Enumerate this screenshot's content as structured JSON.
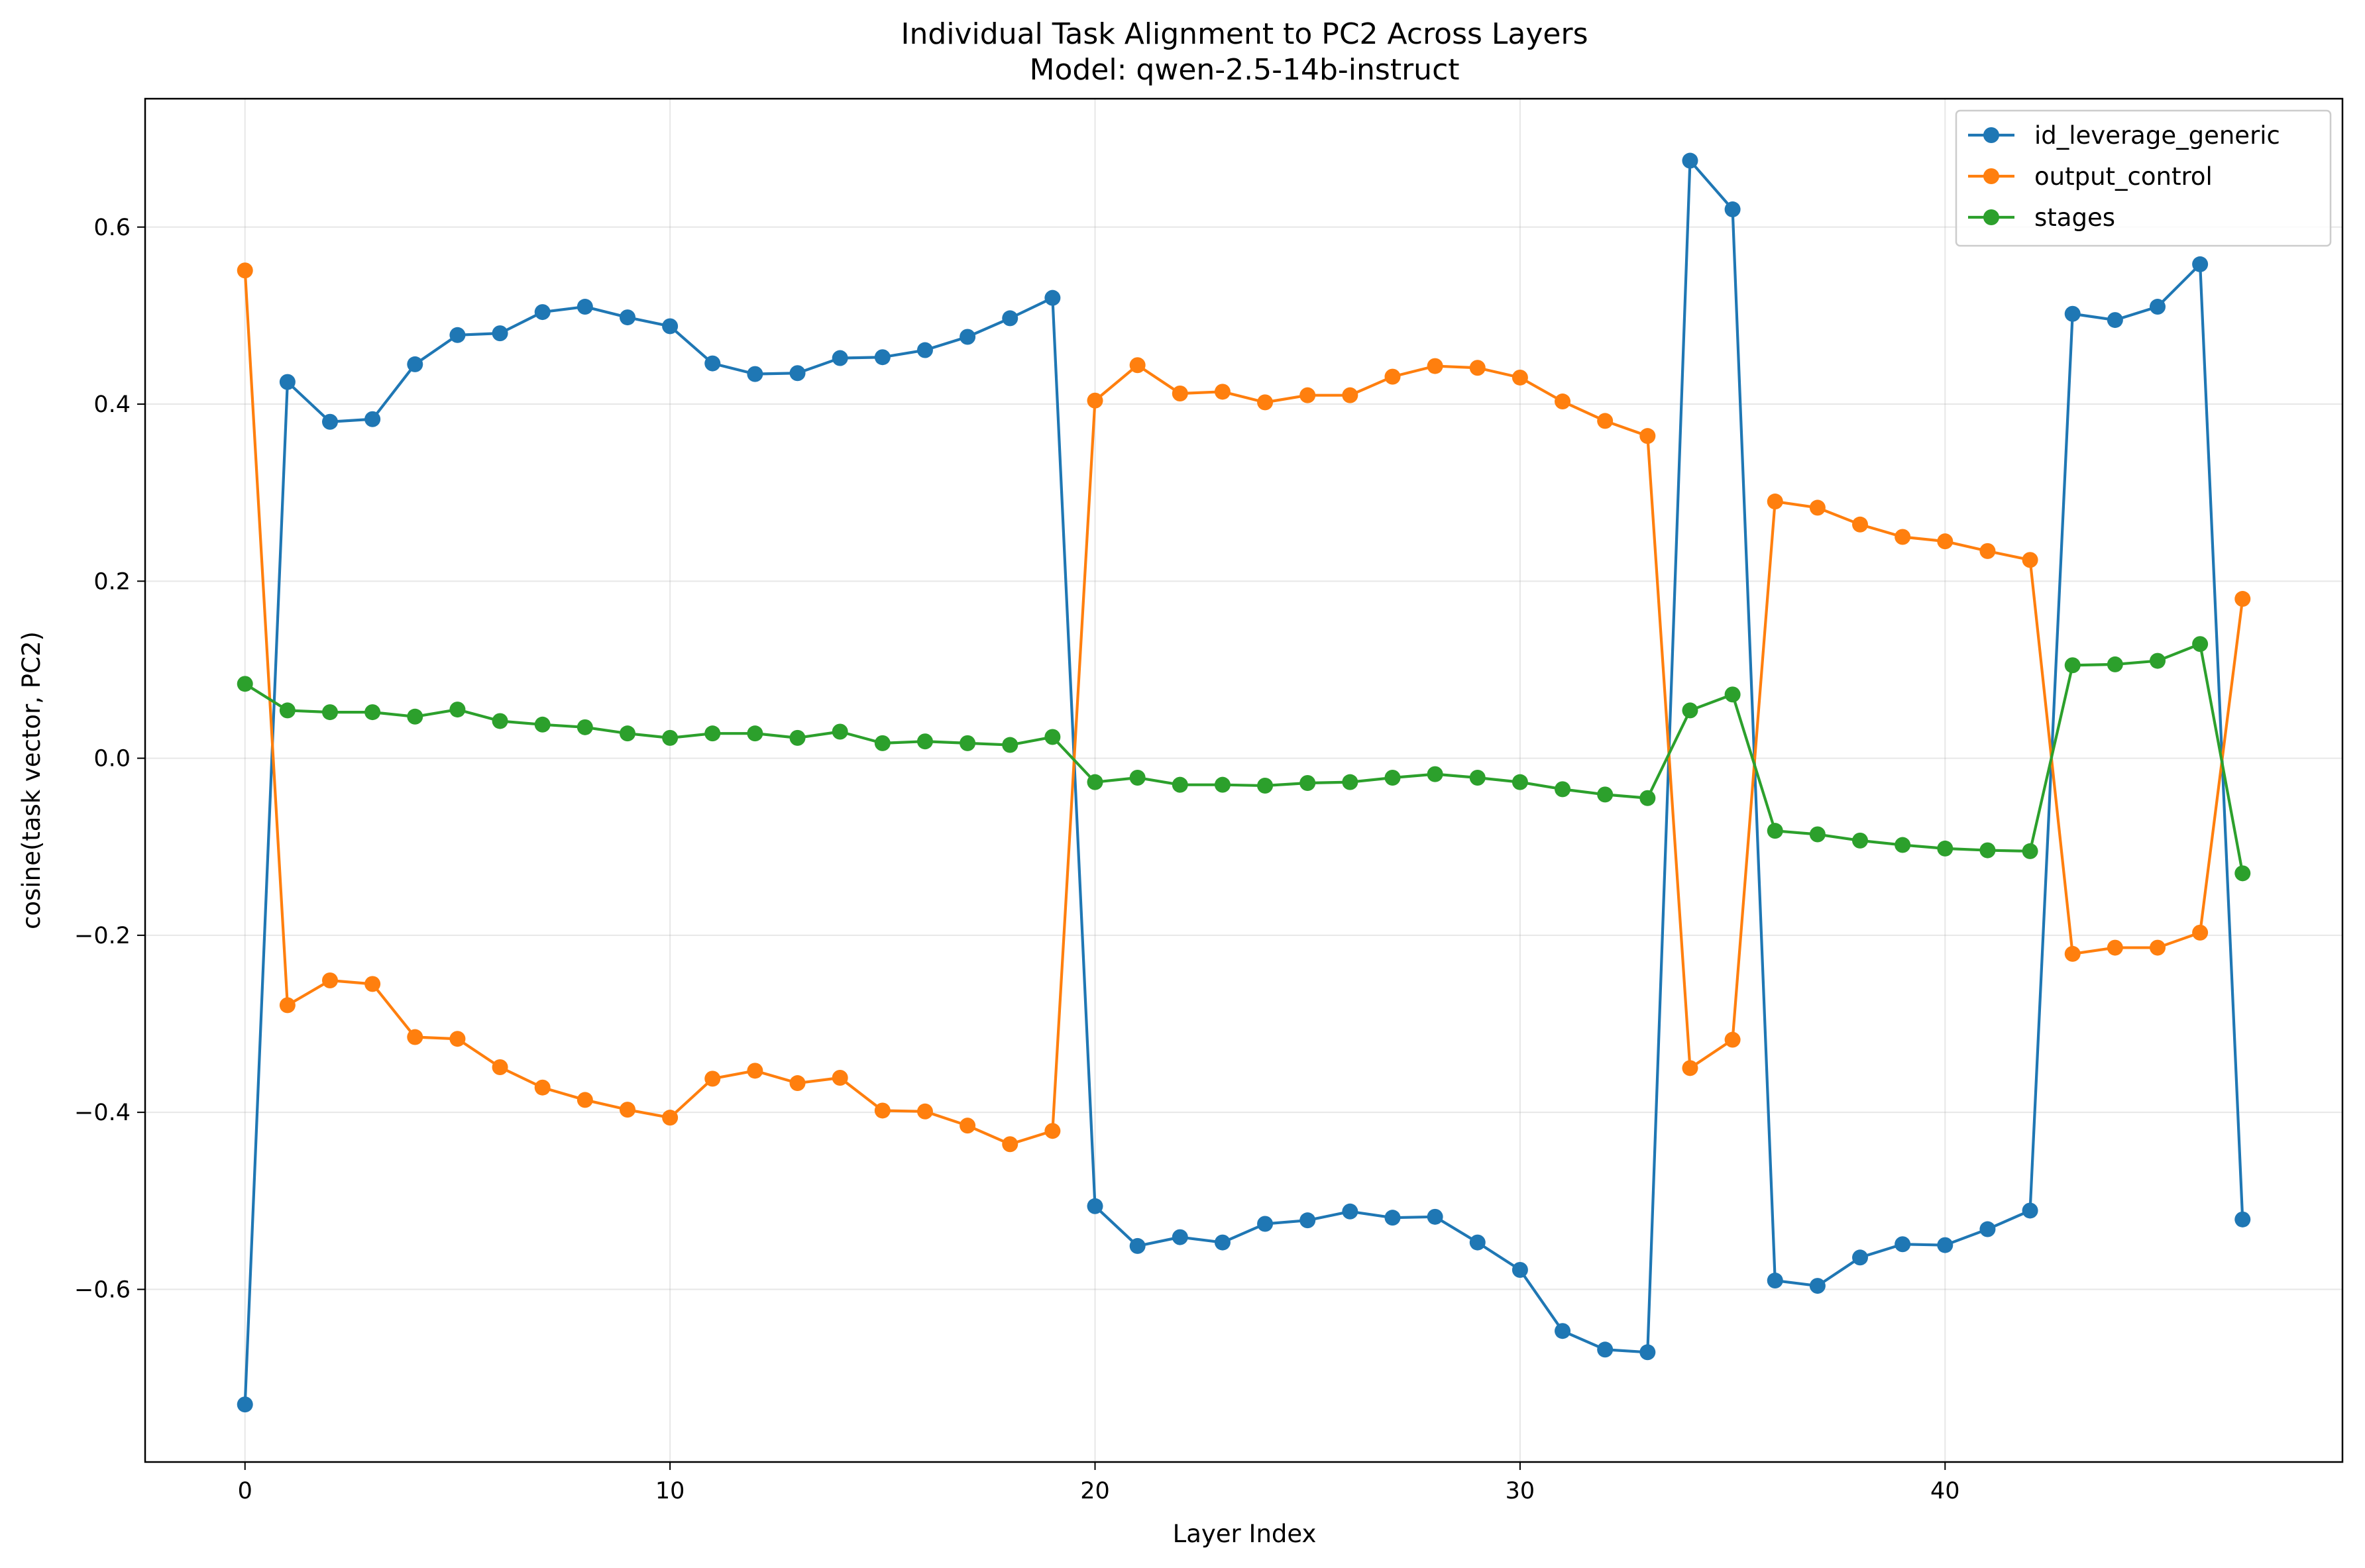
{
  "chart_data": {
    "type": "line",
    "title": "Individual Task Alignment to PC2 Across Layers",
    "subtitle": "Model: qwen-2.5-14b-instruct",
    "xlabel": "Layer Index",
    "ylabel": "cosine(task vector, PC2)",
    "xlim": [
      -2.35,
      49.35
    ],
    "ylim": [
      -0.795,
      0.745
    ],
    "xticks": [
      0,
      10,
      20,
      30,
      40
    ],
    "xtick_labels": [
      "0",
      "10",
      "20",
      "30",
      "40"
    ],
    "yticks": [
      -0.6,
      -0.4,
      -0.2,
      0.0,
      0.2,
      0.4,
      0.6
    ],
    "ytick_labels": [
      "−0.6",
      "−0.4",
      "−0.2",
      "0.0",
      "0.2",
      "0.4",
      "0.6"
    ],
    "grid": true,
    "legend_position": "top-right",
    "x": [
      0,
      1,
      2,
      3,
      4,
      5,
      6,
      7,
      8,
      9,
      10,
      11,
      12,
      13,
      14,
      15,
      16,
      17,
      18,
      19,
      20,
      21,
      22,
      23,
      24,
      25,
      26,
      27,
      28,
      29,
      30,
      31,
      32,
      33,
      34,
      35,
      36,
      37,
      38,
      39,
      40,
      41,
      42,
      43,
      44,
      45,
      46,
      47
    ],
    "series": [
      {
        "name": "id_leverage_generic",
        "color": "#1f77b4",
        "values": [
          -0.73,
          0.425,
          0.38,
          0.383,
          0.445,
          0.478,
          0.48,
          0.504,
          0.51,
          0.498,
          0.488,
          0.446,
          0.434,
          0.435,
          0.452,
          0.453,
          0.461,
          0.476,
          0.497,
          0.52,
          -0.506,
          -0.551,
          -0.541,
          -0.547,
          -0.526,
          -0.522,
          -0.512,
          -0.519,
          -0.518,
          -0.547,
          -0.578,
          -0.647,
          -0.668,
          -0.671,
          0.675,
          0.62,
          -0.59,
          -0.596,
          -0.564,
          -0.549,
          -0.55,
          -0.532,
          -0.511,
          0.502,
          0.495,
          0.51,
          0.558,
          -0.521
        ]
      },
      {
        "name": "output_control",
        "color": "#ff7f0e",
        "values": [
          0.551,
          -0.279,
          -0.251,
          -0.255,
          -0.315,
          -0.317,
          -0.349,
          -0.372,
          -0.386,
          -0.397,
          -0.406,
          -0.362,
          -0.353,
          -0.367,
          -0.361,
          -0.398,
          -0.399,
          -0.415,
          -0.436,
          -0.421,
          0.404,
          0.444,
          0.412,
          0.414,
          0.402,
          0.41,
          0.41,
          0.431,
          0.443,
          0.441,
          0.43,
          0.403,
          0.381,
          0.364,
          -0.35,
          -0.318,
          0.29,
          0.283,
          0.264,
          0.25,
          0.245,
          0.234,
          0.224,
          -0.221,
          -0.214,
          -0.214,
          -0.197,
          0.18
        ]
      },
      {
        "name": "stages",
        "color": "#2ca02c",
        "values": [
          0.084,
          0.054,
          0.052,
          0.052,
          0.047,
          0.055,
          0.042,
          0.038,
          0.035,
          0.028,
          0.023,
          0.028,
          0.028,
          0.023,
          0.03,
          0.017,
          0.019,
          0.017,
          0.015,
          0.024,
          -0.027,
          -0.022,
          -0.03,
          -0.03,
          -0.031,
          -0.028,
          -0.027,
          -0.022,
          -0.018,
          -0.022,
          -0.027,
          -0.035,
          -0.041,
          -0.045,
          0.054,
          0.072,
          -0.082,
          -0.086,
          -0.093,
          -0.098,
          -0.102,
          -0.104,
          -0.105,
          0.105,
          0.106,
          0.11,
          0.129,
          -0.13
        ]
      }
    ]
  }
}
